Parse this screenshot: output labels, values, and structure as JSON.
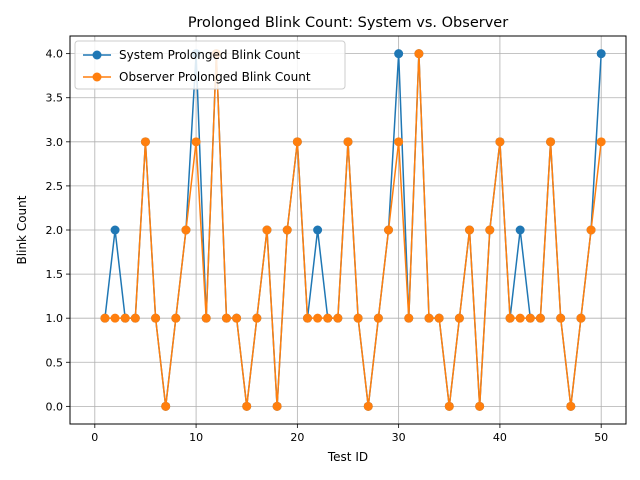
{
  "chart_data": {
    "type": "line",
    "title": "Prolonged Blink Count: System vs. Observer",
    "xlabel": "Test ID",
    "ylabel": "Blink Count",
    "xlim": [
      -2.45,
      52.45
    ],
    "ylim": [
      -0.2,
      4.2
    ],
    "xticks": [
      0,
      10,
      20,
      30,
      40,
      50
    ],
    "xtick_labels": [
      "0",
      "10",
      "20",
      "30",
      "40",
      "50"
    ],
    "yticks": [
      0,
      0.5,
      1,
      1.5,
      2,
      2.5,
      3,
      3.5,
      4
    ],
    "ytick_labels": [
      "0.0",
      "0.5",
      "1.0",
      "1.5",
      "2.0",
      "2.5",
      "3.0",
      "3.5",
      "4.0"
    ],
    "grid": true,
    "legend_position": "top-left",
    "x": [
      1,
      2,
      3,
      4,
      5,
      6,
      7,
      8,
      9,
      10,
      11,
      12,
      13,
      14,
      15,
      16,
      17,
      18,
      19,
      20,
      21,
      22,
      23,
      24,
      25,
      26,
      27,
      28,
      29,
      30,
      31,
      32,
      33,
      34,
      35,
      36,
      37,
      38,
      39,
      40,
      41,
      42,
      43,
      44,
      45,
      46,
      47,
      48,
      49,
      50
    ],
    "series": [
      {
        "name": "System Prolonged Blink Count",
        "color": "#1f77b4",
        "values": [
          1,
          2,
          1,
          1,
          3,
          1,
          0,
          1,
          2,
          4,
          1,
          4,
          1,
          1,
          0,
          1,
          2,
          0,
          2,
          3,
          1,
          2,
          1,
          1,
          3,
          1,
          0,
          1,
          2,
          4,
          1,
          4,
          1,
          1,
          0,
          1,
          2,
          0,
          2,
          3,
          1,
          2,
          1,
          1,
          3,
          1,
          0,
          1,
          2,
          4
        ]
      },
      {
        "name": "Observer Prolonged Blink Count",
        "color": "#ff7f0e",
        "values": [
          1,
          1,
          1,
          1,
          3,
          1,
          0,
          1,
          2,
          3,
          1,
          4,
          1,
          1,
          0,
          1,
          2,
          0,
          2,
          3,
          1,
          1,
          1,
          1,
          3,
          1,
          0,
          1,
          2,
          3,
          1,
          4,
          1,
          1,
          0,
          1,
          2,
          0,
          2,
          3,
          1,
          1,
          1,
          1,
          3,
          1,
          0,
          1,
          2,
          3
        ]
      }
    ]
  }
}
